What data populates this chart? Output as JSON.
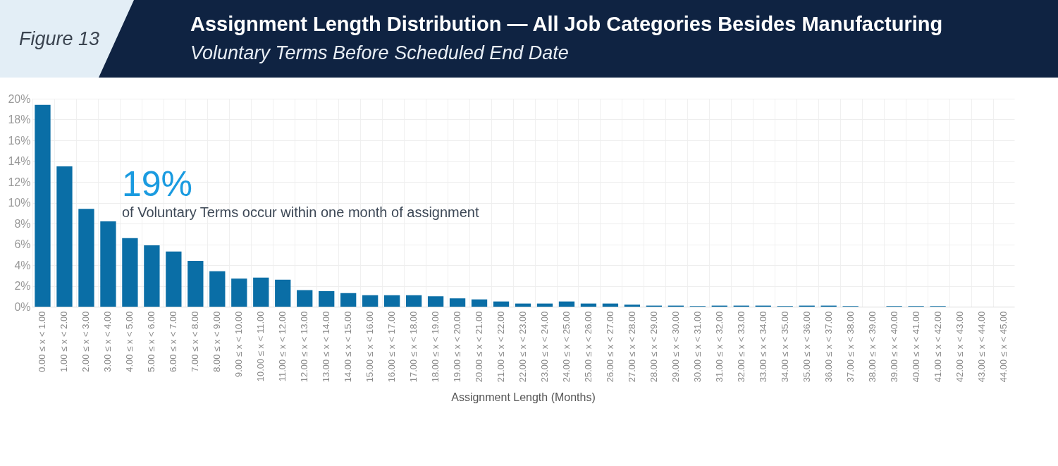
{
  "chart_data": {
    "type": "bar",
    "title": "Assignment Length Distribution — All Job Categories Besides Manufacturing",
    "subtitle": "Voluntary Terms Before Scheduled End Date",
    "xlabel": "Assignment Length (Months)",
    "annotations": [
      "Figure 13",
      "19%",
      "of Voluntary Terms occur within one month of assignment"
    ],
    "categories": [
      "0.00 ≤ x < 1.00",
      "1.00 ≤ x < 2.00",
      "2.00 ≤ x < 3.00",
      "3.00 ≤ x < 4.00",
      "4.00 ≤ x < 5.00",
      "5.00 ≤ x < 6.00",
      "6.00 ≤ x < 7.00",
      "7.00 ≤ x < 8.00",
      "8.00 ≤ x < 9.00",
      "9.00 ≤ x < 10.00",
      "10.00 ≤ x < 11.00",
      "11.00 ≤ x < 12.00",
      "12.00 ≤ x < 13.00",
      "13.00 ≤ x < 14.00",
      "14.00 ≤ x < 15.00",
      "15.00 ≤ x < 16.00",
      "16.00 ≤ x < 17.00",
      "17.00 ≤ x < 18.00",
      "18.00 ≤ x < 19.00",
      "19.00 ≤ x < 20.00",
      "20.00 ≤ x < 21.00",
      "21.00 ≤ x < 22.00",
      "22.00 ≤ x < 23.00",
      "23.00 ≤ x < 24.00",
      "24.00 ≤ x < 25.00",
      "25.00 ≤ x < 26.00",
      "26.00 ≤ x < 27.00",
      "27.00 ≤ x < 28.00",
      "28.00 ≤ x < 29.00",
      "29.00 ≤ x < 30.00",
      "30.00 ≤ x < 31.00",
      "31.00 ≤ x < 32.00",
      "32.00 ≤ x < 33.00",
      "33.00 ≤ x < 34.00",
      "34.00 ≤ x < 35.00",
      "35.00 ≤ x < 36.00",
      "36.00 ≤ x < 37.00",
      "37.00 ≤ x < 38.00",
      "38.00 ≤ x < 39.00",
      "39.00 ≤ x < 40.00",
      "40.00 ≤ x < 41.00",
      "41.00 ≤ x < 42.00",
      "42.00 ≤ x < 43.00",
      "43.00 ≤ x < 44.00",
      "44.00 ≤ x < 45.00"
    ],
    "series": [
      {
        "color": "#0a6ea6",
        "values": [
          19.4,
          13.5,
          9.4,
          8.2,
          6.6,
          5.9,
          5.3,
          4.4,
          3.4,
          2.7,
          2.8,
          2.6,
          1.6,
          1.5,
          1.3,
          1.1,
          1.1,
          1.1,
          1.0,
          0.8,
          0.7,
          0.5,
          0.3,
          0.3,
          0.5,
          0.3,
          0.3,
          0.2,
          0.1,
          0.1,
          0.05,
          0.1,
          0.1,
          0.1,
          0.05,
          0.1,
          0.1,
          0.05,
          0,
          0.05,
          0.05,
          0.05,
          0,
          0,
          0
        ]
      }
    ],
    "ylim": [
      0,
      20
    ],
    "yticks": [
      {
        "value": 0,
        "label": "0%"
      },
      {
        "value": 2,
        "label": "2%"
      },
      {
        "value": 4,
        "label": "4%"
      },
      {
        "value": 6,
        "label": "6%"
      },
      {
        "value": 8,
        "label": "8%"
      },
      {
        "value": 10,
        "label": "10%"
      },
      {
        "value": 12,
        "label": "12%"
      },
      {
        "value": 14,
        "label": "14%"
      },
      {
        "value": 16,
        "label": "16%"
      },
      {
        "value": 18,
        "label": "18%"
      },
      {
        "value": 20,
        "label": "20%"
      }
    ],
    "grid": true
  }
}
